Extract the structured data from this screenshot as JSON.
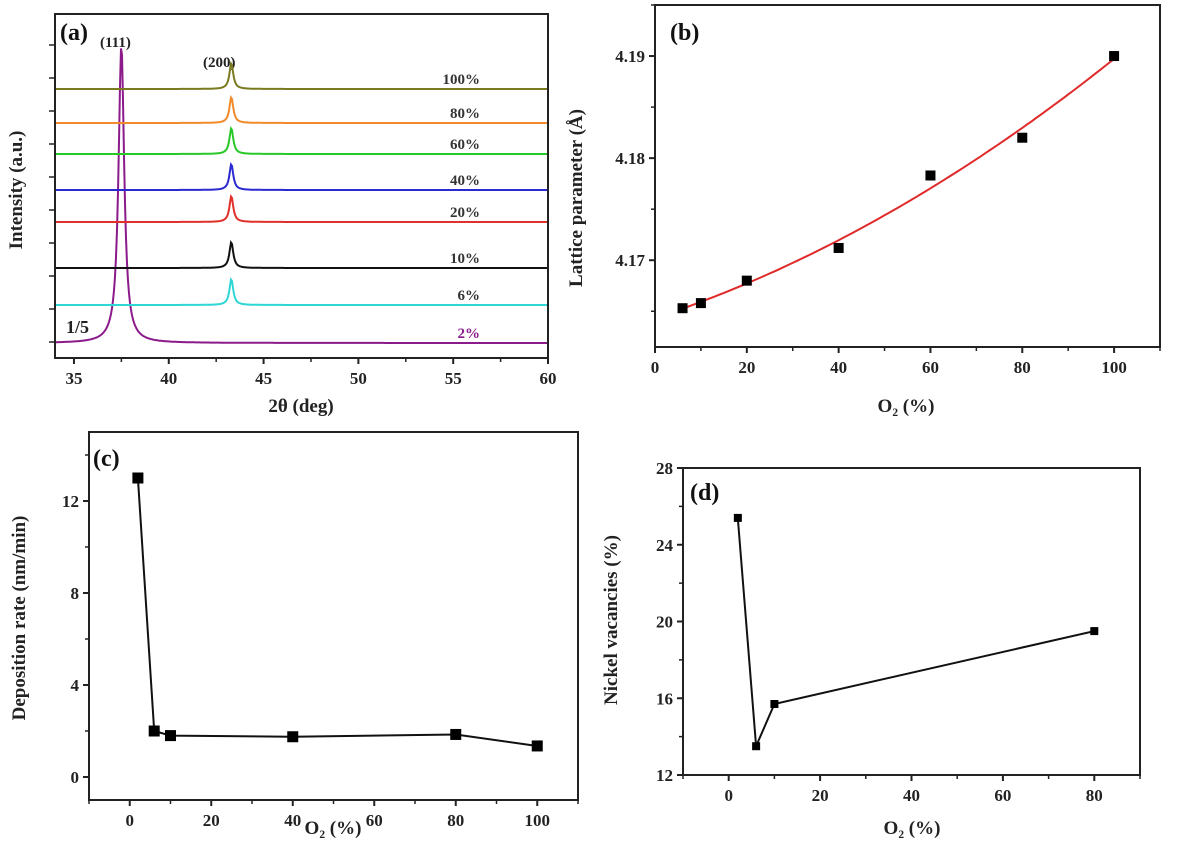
{
  "chart_data": [
    {
      "id": "a",
      "type": "line",
      "panel_label": "(a)",
      "title": "",
      "xlabel": "2θ (deg)",
      "ylabel": "Intensity (a.u.)",
      "xlim": [
        34,
        60
      ],
      "xticks": [
        35,
        40,
        45,
        50,
        55,
        60
      ],
      "xtick_labels": [
        "35",
        "40",
        "45",
        "50",
        "55",
        "60"
      ],
      "ytick_labels": [],
      "annotations": [
        "(111)",
        "(200)",
        "1/5"
      ],
      "peaks": {
        "111": 37.5,
        "200": 43.3
      },
      "series": [
        {
          "name": "2%",
          "color": "#8b1a8b",
          "offset": 0,
          "peak_111": 1.0,
          "peak_200": 0
        },
        {
          "name": "6%",
          "color": "#2fd6d6",
          "offset": 1,
          "peak_111": 0,
          "peak_200": 0.28
        },
        {
          "name": "10%",
          "color": "#111111",
          "offset": 2,
          "peak_111": 0,
          "peak_200": 0.33
        },
        {
          "name": "20%",
          "color": "#e0302a",
          "offset": 3,
          "peak_111": 0,
          "peak_200": 0.22
        },
        {
          "name": "40%",
          "color": "#2a2ad0",
          "offset": 4,
          "peak_111": 0,
          "peak_200": 0.28
        },
        {
          "name": "60%",
          "color": "#28c828",
          "offset": 5,
          "peak_111": 0,
          "peak_200": 0.22
        },
        {
          "name": "80%",
          "color": "#f08a2a",
          "offset": 6,
          "peak_111": 0,
          "peak_200": 0.28
        },
        {
          "name": "100%",
          "color": "#7a7a20",
          "offset": 7,
          "peak_111": 0,
          "peak_200": 0.2
        }
      ]
    },
    {
      "id": "b",
      "type": "scatter",
      "panel_label": "(b)",
      "title": "",
      "xlabel": "O₂ (%)",
      "ylabel": "Lattice parameter (Å)",
      "xlim": [
        0,
        110
      ],
      "ylim": [
        4.1615,
        4.195
      ],
      "xticks": [
        0,
        20,
        40,
        60,
        80,
        100
      ],
      "yticks": [
        4.17,
        4.18,
        4.19
      ],
      "xtick_labels": [
        "0",
        "20",
        "40",
        "60",
        "80",
        "100"
      ],
      "ytick_labels": [
        "4.17",
        "4.18",
        "4.19"
      ],
      "x": [
        6,
        10,
        20,
        40,
        60,
        80,
        100
      ],
      "y": [
        4.1653,
        4.1658,
        4.168,
        4.1712,
        4.1783,
        4.182,
        4.19
      ],
      "fit": {
        "type": "quadratic",
        "color": "#e02a2a"
      }
    },
    {
      "id": "c",
      "type": "line",
      "panel_label": "(c)",
      "title": "",
      "xlabel": "O₂ (%)",
      "ylabel": "Deposition rate (nm/min)",
      "xlim": [
        -10,
        110
      ],
      "ylim": [
        -1,
        15
      ],
      "xticks": [
        0,
        20,
        40,
        60,
        80,
        100
      ],
      "yticks": [
        0,
        4,
        8,
        12
      ],
      "xtick_labels": [
        "0",
        "20",
        "40",
        "60",
        "80",
        "100"
      ],
      "ytick_labels": [
        "0",
        "4",
        "8",
        "12"
      ],
      "x": [
        2,
        6,
        10,
        40,
        80,
        100
      ],
      "y": [
        13.0,
        2.0,
        1.8,
        1.75,
        1.85,
        1.35
      ]
    },
    {
      "id": "d",
      "type": "line",
      "panel_label": "(d)",
      "title": "",
      "xlabel": "O₂ (%)",
      "ylabel": "Nickel vacancies (%)",
      "xlim": [
        -10,
        90
      ],
      "ylim": [
        12,
        28
      ],
      "xticks": [
        0,
        20,
        40,
        60,
        80
      ],
      "yticks": [
        12,
        16,
        20,
        24,
        28
      ],
      "xtick_labels": [
        "0",
        "20",
        "40",
        "60",
        "80"
      ],
      "ytick_labels": [
        "12",
        "16",
        "20",
        "24",
        "28"
      ],
      "x": [
        2,
        6,
        10,
        80
      ],
      "y": [
        25.4,
        13.5,
        15.7,
        19.5
      ]
    }
  ]
}
